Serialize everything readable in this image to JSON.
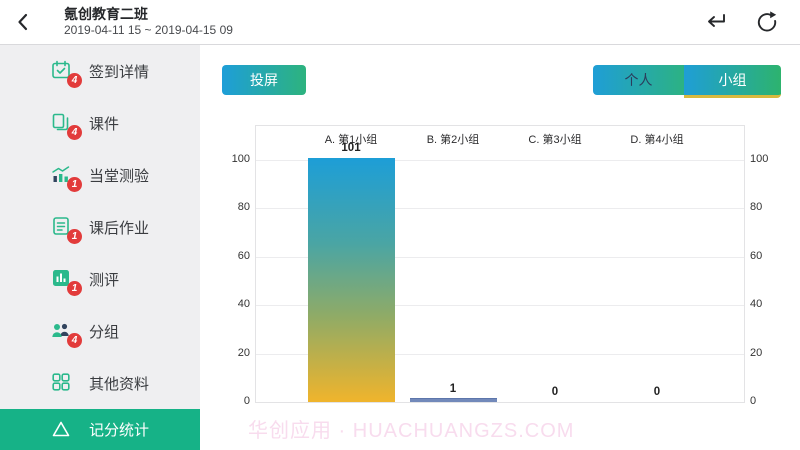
{
  "header": {
    "title": "氪创教育二班",
    "subtitle": "2019-04-11 15 ~ 2019-04-15 09"
  },
  "sidebar": {
    "items": [
      {
        "label": "签到详情",
        "badge": "4",
        "icon": "calendar-check-icon"
      },
      {
        "label": "课件",
        "badge": "4",
        "icon": "courseware-pages-icon"
      },
      {
        "label": "当堂测验",
        "badge": "1",
        "icon": "quiz-chart-icon"
      },
      {
        "label": "课后作业",
        "badge": "1",
        "icon": "homework-document-icon"
      },
      {
        "label": "测评",
        "badge": "1",
        "icon": "evaluation-chart-icon"
      },
      {
        "label": "分组",
        "badge": "4",
        "icon": "groups-people-icon"
      },
      {
        "label": "其他资料",
        "badge": "",
        "icon": "grid-icon"
      }
    ],
    "active_item": {
      "label": "记分统计",
      "icon": "triangle-icon"
    }
  },
  "toolbar": {
    "cast_button": "投屏",
    "tabs": [
      {
        "label": "个人",
        "active": false
      },
      {
        "label": "小组",
        "active": true
      }
    ]
  },
  "chart_data": {
    "type": "bar",
    "title": "",
    "xlabel": "",
    "ylabel": "",
    "categories": [
      "A. 第1小组",
      "B. 第2小组",
      "C. 第3小组",
      "D. 第4小组"
    ],
    "values": [
      101,
      1,
      0,
      0
    ],
    "ylim": [
      0,
      100
    ],
    "yticks": [
      0,
      20,
      40,
      60,
      80,
      100
    ],
    "axis_sides": [
      "left",
      "right"
    ],
    "grid": true,
    "legend_position": "none"
  },
  "watermark": "华创应用 · HUACHUANGZS.COM",
  "colors": {
    "accent_green": "#16b287",
    "icon_green": "#2bb98c",
    "badge_red": "#e23b3b",
    "button_gradient_start": "#1e9ed8",
    "button_gradient_end": "#2db37e",
    "tab_active_underline": "#d8b93e",
    "bar_gradient_top": "#1d9ed7",
    "bar_gradient_bottom": "#f0b42c",
    "small_bar": "#7289ba",
    "watermark_pink": "#f8dcee",
    "sidebar_bg": "#efeff1"
  }
}
